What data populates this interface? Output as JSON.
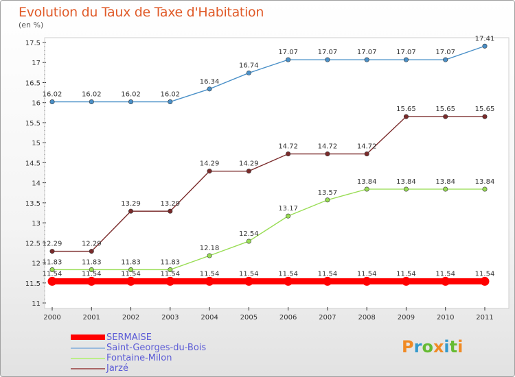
{
  "chart_data": {
    "type": "line",
    "title": "Evolution du Taux de Taxe d'Habitation",
    "subtitle": "(en %)",
    "x": [
      "2000",
      "2001",
      "2002",
      "2003",
      "2004",
      "2005",
      "2006",
      "2007",
      "2008",
      "2009",
      "2010",
      "2011"
    ],
    "ylim": [
      11,
      17.5
    ],
    "y_ticks": [
      "11",
      "11.5",
      "12",
      "12.5",
      "13",
      "13.5",
      "14",
      "14.5",
      "15",
      "15.5",
      "16",
      "16.5",
      "17",
      "17.5"
    ],
    "series": [
      {
        "name": "SERMAISE",
        "color": "#ff0000",
        "values": [
          11.54,
          11.54,
          11.54,
          11.54,
          11.54,
          11.54,
          11.54,
          11.54,
          11.54,
          11.54,
          11.54,
          11.54
        ],
        "labels": [
          "11.54",
          "11.54",
          "11.54",
          "11.54",
          "11.54",
          "11.54",
          "11.54",
          "11.54",
          "11.54",
          "11.54",
          "11.54",
          "11.54"
        ]
      },
      {
        "name": "Saint-Georges-du-Bois",
        "color": "#4a90c8",
        "values": [
          16.02,
          16.02,
          16.02,
          16.02,
          16.34,
          16.74,
          17.07,
          17.07,
          17.07,
          17.07,
          17.07,
          17.41
        ],
        "labels": [
          "16.02",
          "16.02",
          "16.02",
          "16.02",
          "16.34",
          "16.74",
          "17.07",
          "17.07",
          "17.07",
          "17.07",
          "17.07",
          "17.41"
        ]
      },
      {
        "name": "Fontaine-Milon",
        "color": "#99dd55",
        "values": [
          11.83,
          11.83,
          11.83,
          11.83,
          12.18,
          12.54,
          13.17,
          13.57,
          13.84,
          13.84,
          13.84,
          13.84
        ],
        "labels": [
          "11.83",
          "11.83",
          "11.83",
          "11.83",
          "12.18",
          "12.54",
          "13.17",
          "13.57",
          "13.84",
          "13.84",
          "13.84",
          "13.84"
        ]
      },
      {
        "name": "Jarzé",
        "color": "#7a2a2a",
        "values": [
          12.29,
          12.29,
          13.29,
          13.29,
          14.29,
          14.29,
          14.72,
          14.72,
          14.72,
          15.65,
          15.65,
          15.65
        ],
        "labels": [
          "12.29",
          "12.29",
          "13.29",
          "13.29",
          "14.29",
          "14.29",
          "14.72",
          "14.72",
          "14.72",
          "15.65",
          "15.65",
          "15.65"
        ]
      }
    ],
    "legend_placement": "bottom-left",
    "grid": false
  },
  "legend": {
    "items": [
      "SERMAISE",
      "Saint-Georges-du-Bois",
      "Fontaine-Milon",
      "Jarzé"
    ],
    "colors": [
      "#ff0000",
      "#99bbdd",
      "#bbee88",
      "#aa6666"
    ]
  },
  "logo": {
    "text": "Proxiti"
  }
}
